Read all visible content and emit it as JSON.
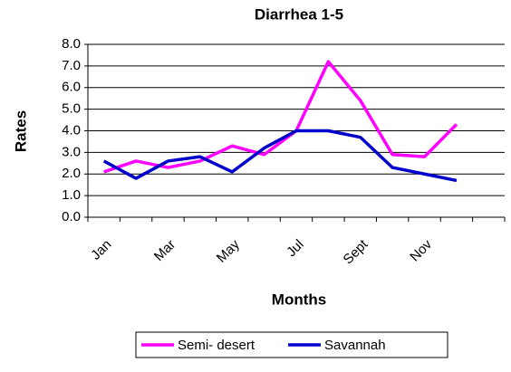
{
  "chart_data": {
    "type": "line",
    "title": "Diarrhea 1-5",
    "xlabel": "Months",
    "ylabel": "Rates",
    "categories": [
      "Jan",
      null,
      "Mar",
      null,
      "May",
      null,
      "Jul",
      null,
      "Sept",
      null,
      "Nov",
      null,
      null
    ],
    "series": [
      {
        "name": "Semi- desert",
        "color": "#ff00ff",
        "values": [
          2.1,
          2.6,
          2.3,
          2.6,
          3.3,
          2.9,
          4.0,
          7.2,
          5.4,
          2.9,
          2.8,
          4.3,
          null
        ]
      },
      {
        "name": "Savannah",
        "color": "#0000cc",
        "values": [
          2.6,
          1.8,
          2.6,
          2.8,
          2.1,
          3.2,
          4.0,
          4.0,
          3.7,
          2.3,
          2.0,
          1.7,
          null
        ]
      }
    ],
    "ylim": [
      0,
      8
    ],
    "yticks": [
      {
        "value": 0,
        "label": "0.0"
      },
      {
        "value": 1,
        "label": "1.0"
      },
      {
        "value": 2,
        "label": "2.0"
      },
      {
        "value": 3,
        "label": "3.0"
      },
      {
        "value": 4,
        "label": "4.0"
      },
      {
        "value": 5,
        "label": "5.0"
      },
      {
        "value": 6,
        "label": "6.0"
      },
      {
        "value": 7,
        "label": "7.0"
      },
      {
        "value": 8,
        "label": "8.0"
      }
    ],
    "grid": true,
    "legend": "bottom"
  }
}
